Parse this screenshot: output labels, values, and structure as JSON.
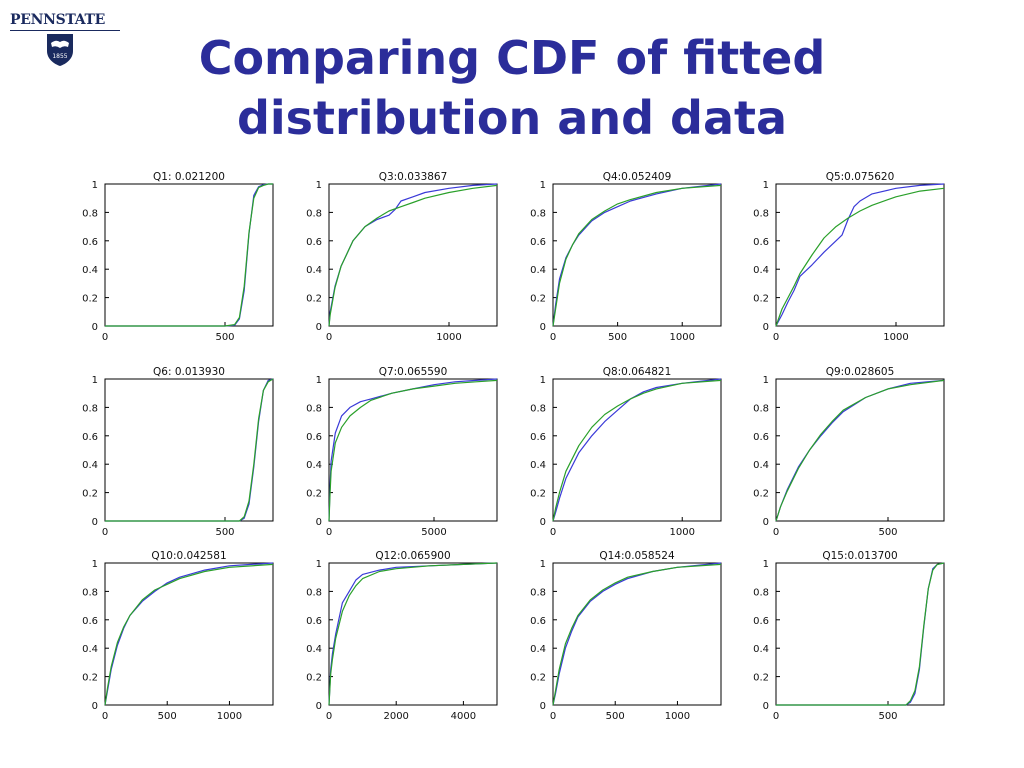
{
  "header": {
    "logo_text": "PENNSTATE",
    "logo_year": "1855",
    "title_line1": "Comparing CDF of fitted",
    "title_line2": "distribution and data"
  },
  "colors": {
    "data": "#3a3ad8",
    "fitted": "#2aa02a",
    "title": "#2b2d9a",
    "logo": "#1a2a5e"
  },
  "chart_data": [
    {
      "type": "line",
      "title": "Q1: 0.021200",
      "xlim": [
        0,
        700
      ],
      "ylim": [
        0,
        1
      ],
      "xticks": [
        0,
        500
      ],
      "yticks": [
        0,
        0.2,
        0.4,
        0.6,
        0.8,
        1
      ],
      "ytick_labels": [
        "0",
        "0.2",
        "0.4",
        "0.6",
        "0.8",
        "1"
      ],
      "series": [
        {
          "x": [
            0,
            500,
            540,
            560,
            580,
            600,
            620,
            640,
            660,
            680,
            700
          ],
          "y": [
            0,
            0,
            0.005,
            0.05,
            0.25,
            0.65,
            0.92,
            0.98,
            0.995,
            1,
            1
          ]
        },
        {
          "x": [
            0,
            500,
            540,
            560,
            580,
            600,
            620,
            640,
            660,
            680,
            700
          ],
          "y": [
            0,
            0,
            0.01,
            0.06,
            0.28,
            0.66,
            0.9,
            0.975,
            0.99,
            1,
            1
          ]
        }
      ]
    },
    {
      "type": "line",
      "title": "Q3:0.033867",
      "xlim": [
        0,
        1400
      ],
      "ylim": [
        0,
        1
      ],
      "xticks": [
        0,
        1000
      ],
      "yticks": [
        0,
        0.2,
        0.4,
        0.6,
        0.8,
        1
      ],
      "ytick_labels": [
        "0",
        "0.2",
        "0.4",
        "0.6",
        "0.8",
        "1"
      ],
      "series": [
        {
          "x": [
            0,
            10,
            50,
            100,
            200,
            300,
            400,
            500,
            550,
            600,
            700,
            800,
            1000,
            1200,
            1400
          ],
          "y": [
            0,
            0.1,
            0.28,
            0.42,
            0.6,
            0.7,
            0.75,
            0.78,
            0.82,
            0.88,
            0.91,
            0.94,
            0.97,
            0.99,
            1
          ]
        },
        {
          "x": [
            0,
            10,
            50,
            100,
            200,
            300,
            400,
            500,
            600,
            700,
            800,
            1000,
            1200,
            1400
          ],
          "y": [
            0,
            0.08,
            0.27,
            0.42,
            0.6,
            0.7,
            0.76,
            0.81,
            0.84,
            0.87,
            0.9,
            0.94,
            0.97,
            0.99
          ]
        }
      ]
    },
    {
      "type": "line",
      "title": "Q4:0.052409",
      "xlim": [
        0,
        1300
      ],
      "ylim": [
        0,
        1
      ],
      "xticks": [
        0,
        500,
        1000
      ],
      "yticks": [
        0,
        0.2,
        0.4,
        0.6,
        0.8,
        1
      ],
      "ytick_labels": [
        "0",
        "0.2",
        "0.4",
        "0.6",
        "0.8",
        "1"
      ],
      "series": [
        {
          "x": [
            0,
            20,
            50,
            100,
            150,
            200,
            300,
            400,
            500,
            600,
            800,
            1000,
            1300
          ],
          "y": [
            0,
            0.15,
            0.33,
            0.48,
            0.57,
            0.64,
            0.74,
            0.8,
            0.84,
            0.88,
            0.93,
            0.97,
            1
          ]
        },
        {
          "x": [
            0,
            20,
            50,
            100,
            150,
            200,
            300,
            400,
            500,
            600,
            800,
            1000,
            1300
          ],
          "y": [
            0,
            0.12,
            0.3,
            0.47,
            0.57,
            0.65,
            0.75,
            0.81,
            0.86,
            0.89,
            0.94,
            0.97,
            0.99
          ]
        }
      ]
    },
    {
      "type": "line",
      "title": "Q5:0.075620",
      "xlim": [
        0,
        1400
      ],
      "ylim": [
        0,
        1
      ],
      "xticks": [
        0,
        1000
      ],
      "yticks": [
        0,
        0.2,
        0.4,
        0.6,
        0.8,
        1
      ],
      "ytick_labels": [
        "0",
        "0.2",
        "0.4",
        "0.6",
        "0.8",
        "1"
      ],
      "series": [
        {
          "x": [
            0,
            50,
            100,
            150,
            200,
            300,
            400,
            500,
            550,
            600,
            650,
            700,
            800,
            1000,
            1200,
            1400
          ],
          "y": [
            0,
            0.08,
            0.17,
            0.25,
            0.35,
            0.43,
            0.52,
            0.6,
            0.64,
            0.75,
            0.84,
            0.88,
            0.93,
            0.97,
            0.99,
            1
          ]
        },
        {
          "x": [
            0,
            50,
            100,
            150,
            200,
            300,
            400,
            500,
            600,
            700,
            800,
            1000,
            1200,
            1400
          ],
          "y": [
            0,
            0.12,
            0.2,
            0.28,
            0.37,
            0.5,
            0.62,
            0.7,
            0.76,
            0.81,
            0.85,
            0.91,
            0.95,
            0.97
          ]
        }
      ]
    },
    {
      "type": "line",
      "title": "Q6: 0.013930",
      "xlim": [
        0,
        700
      ],
      "ylim": [
        0,
        1
      ],
      "xticks": [
        0,
        500
      ],
      "yticks": [
        0,
        0.2,
        0.4,
        0.6,
        0.8,
        1
      ],
      "ytick_labels": [
        "0",
        "0.2",
        "0.4",
        "0.6",
        "0.8",
        "1"
      ],
      "series": [
        {
          "x": [
            0,
            560,
            580,
            600,
            620,
            640,
            660,
            680,
            700
          ],
          "y": [
            0,
            0,
            0.02,
            0.12,
            0.38,
            0.7,
            0.92,
            0.99,
            1
          ]
        },
        {
          "x": [
            0,
            560,
            580,
            600,
            620,
            640,
            660,
            680,
            700
          ],
          "y": [
            0,
            0,
            0.03,
            0.14,
            0.4,
            0.72,
            0.92,
            0.98,
            1
          ]
        }
      ]
    },
    {
      "type": "line",
      "title": "Q7:0.065590",
      "xlim": [
        0,
        8000
      ],
      "ylim": [
        0,
        1
      ],
      "xticks": [
        0,
        5000
      ],
      "yticks": [
        0,
        0.2,
        0.4,
        0.6,
        0.8,
        1
      ],
      "ytick_labels": [
        "0",
        "0.2",
        "0.4",
        "0.6",
        "0.8",
        "1"
      ],
      "series": [
        {
          "x": [
            0,
            50,
            100,
            300,
            600,
            1000,
            1500,
            2000,
            3000,
            4000,
            5000,
            6000,
            7000,
            8000
          ],
          "y": [
            0,
            0.25,
            0.42,
            0.62,
            0.74,
            0.8,
            0.84,
            0.86,
            0.9,
            0.93,
            0.96,
            0.98,
            0.99,
            1
          ]
        },
        {
          "x": [
            0,
            50,
            100,
            300,
            600,
            1000,
            1500,
            2000,
            3000,
            4000,
            5000,
            6000,
            7000,
            8000
          ],
          "y": [
            0,
            0.2,
            0.35,
            0.55,
            0.66,
            0.74,
            0.8,
            0.85,
            0.9,
            0.93,
            0.95,
            0.97,
            0.98,
            0.99
          ]
        }
      ]
    },
    {
      "type": "line",
      "title": "Q8:0.064821",
      "xlim": [
        0,
        1300
      ],
      "ylim": [
        0,
        1
      ],
      "xticks": [
        0,
        1000
      ],
      "yticks": [
        0,
        0.2,
        0.4,
        0.6,
        0.8,
        1
      ],
      "ytick_labels": [
        "0",
        "0.2",
        "0.4",
        "0.6",
        "0.8",
        "1"
      ],
      "series": [
        {
          "x": [
            0,
            20,
            50,
            100,
            200,
            300,
            400,
            500,
            600,
            700,
            800,
            1000,
            1300
          ],
          "y": [
            0,
            0.06,
            0.16,
            0.3,
            0.48,
            0.6,
            0.7,
            0.78,
            0.86,
            0.91,
            0.94,
            0.97,
            1
          ]
        },
        {
          "x": [
            0,
            20,
            50,
            100,
            200,
            300,
            400,
            500,
            600,
            700,
            800,
            1000,
            1300
          ],
          "y": [
            0,
            0.09,
            0.2,
            0.35,
            0.53,
            0.66,
            0.75,
            0.81,
            0.86,
            0.9,
            0.93,
            0.97,
            0.99
          ]
        }
      ]
    },
    {
      "type": "line",
      "title": "Q9:0.028605",
      "xlim": [
        0,
        750
      ],
      "ylim": [
        0,
        1
      ],
      "xticks": [
        0,
        500
      ],
      "yticks": [
        0,
        0.2,
        0.4,
        0.6,
        0.8,
        1
      ],
      "ytick_labels": [
        "0",
        "0.2",
        "0.4",
        "0.6",
        "0.8",
        "1"
      ],
      "series": [
        {
          "x": [
            0,
            20,
            50,
            100,
            150,
            200,
            250,
            300,
            400,
            500,
            600,
            750
          ],
          "y": [
            0,
            0.1,
            0.22,
            0.38,
            0.5,
            0.6,
            0.69,
            0.77,
            0.87,
            0.93,
            0.97,
            0.99
          ]
        },
        {
          "x": [
            0,
            20,
            50,
            100,
            150,
            200,
            250,
            300,
            400,
            500,
            600,
            750
          ],
          "y": [
            0,
            0.1,
            0.21,
            0.37,
            0.5,
            0.61,
            0.7,
            0.78,
            0.87,
            0.93,
            0.96,
            0.99
          ]
        }
      ]
    },
    {
      "type": "line",
      "title": "Q10:0.042581",
      "xlim": [
        0,
        1350
      ],
      "ylim": [
        0,
        1
      ],
      "xticks": [
        0,
        500,
        1000
      ],
      "yticks": [
        0,
        0.2,
        0.4,
        0.6,
        0.8,
        1
      ],
      "ytick_labels": [
        "0",
        "0.2",
        "0.4",
        "0.6",
        "0.8",
        "1"
      ],
      "series": [
        {
          "x": [
            0,
            20,
            50,
            100,
            150,
            200,
            300,
            400,
            500,
            600,
            800,
            1000,
            1350
          ],
          "y": [
            0,
            0.1,
            0.25,
            0.42,
            0.54,
            0.63,
            0.73,
            0.8,
            0.86,
            0.9,
            0.95,
            0.98,
            1
          ]
        },
        {
          "x": [
            0,
            20,
            50,
            100,
            150,
            200,
            300,
            400,
            500,
            600,
            800,
            1000,
            1350
          ],
          "y": [
            0,
            0.12,
            0.27,
            0.44,
            0.55,
            0.63,
            0.74,
            0.81,
            0.85,
            0.89,
            0.94,
            0.97,
            0.99
          ]
        }
      ]
    },
    {
      "type": "line",
      "title": "Q12:0.065900",
      "xlim": [
        0,
        5000
      ],
      "ylim": [
        0,
        1
      ],
      "xticks": [
        0,
        2000,
        4000
      ],
      "yticks": [
        0,
        0.2,
        0.4,
        0.6,
        0.8,
        1
      ],
      "ytick_labels": [
        "0",
        "0.2",
        "0.4",
        "0.6",
        "0.8",
        "1"
      ],
      "series": [
        {
          "x": [
            0,
            50,
            100,
            200,
            400,
            600,
            800,
            1000,
            1500,
            2000,
            3000,
            4000,
            5000
          ],
          "y": [
            0,
            0.25,
            0.36,
            0.5,
            0.72,
            0.8,
            0.88,
            0.92,
            0.95,
            0.97,
            0.98,
            0.99,
            1
          ]
        },
        {
          "x": [
            0,
            50,
            100,
            200,
            400,
            600,
            800,
            1000,
            1500,
            2000,
            3000,
            4000,
            5000
          ],
          "y": [
            0,
            0.22,
            0.32,
            0.47,
            0.66,
            0.77,
            0.84,
            0.89,
            0.94,
            0.96,
            0.98,
            0.99,
            1
          ]
        }
      ]
    },
    {
      "type": "line",
      "title": "Q14:0.058524",
      "xlim": [
        0,
        1350
      ],
      "ylim": [
        0,
        1
      ],
      "xticks": [
        0,
        500,
        1000
      ],
      "yticks": [
        0,
        0.2,
        0.4,
        0.6,
        0.8,
        1
      ],
      "ytick_labels": [
        "0",
        "0.2",
        "0.4",
        "0.6",
        "0.8",
        "1"
      ],
      "series": [
        {
          "x": [
            0,
            20,
            50,
            100,
            150,
            200,
            300,
            400,
            500,
            600,
            800,
            1000,
            1350
          ],
          "y": [
            0,
            0.08,
            0.22,
            0.4,
            0.52,
            0.62,
            0.73,
            0.8,
            0.85,
            0.89,
            0.94,
            0.97,
            1
          ]
        },
        {
          "x": [
            0,
            20,
            50,
            100,
            150,
            200,
            300,
            400,
            500,
            600,
            800,
            1000,
            1350
          ],
          "y": [
            0,
            0.1,
            0.25,
            0.43,
            0.54,
            0.63,
            0.74,
            0.81,
            0.86,
            0.9,
            0.94,
            0.97,
            0.99
          ]
        }
      ]
    },
    {
      "type": "line",
      "title": "Q15:0.013700",
      "xlim": [
        0,
        750
      ],
      "ylim": [
        0,
        1
      ],
      "xticks": [
        0,
        500
      ],
      "yticks": [
        0,
        0.2,
        0.4,
        0.6,
        0.8,
        1
      ],
      "ytick_labels": [
        "0",
        "0.2",
        "0.4",
        "0.6",
        "0.8",
        "1"
      ],
      "series": [
        {
          "x": [
            0,
            580,
            600,
            620,
            640,
            660,
            680,
            700,
            720,
            750
          ],
          "y": [
            0,
            0,
            0.02,
            0.08,
            0.25,
            0.55,
            0.82,
            0.96,
            0.99,
            1
          ]
        },
        {
          "x": [
            0,
            580,
            600,
            620,
            640,
            660,
            680,
            700,
            720,
            750
          ],
          "y": [
            0,
            0,
            0.03,
            0.1,
            0.27,
            0.56,
            0.82,
            0.95,
            0.99,
            1
          ]
        }
      ]
    }
  ]
}
